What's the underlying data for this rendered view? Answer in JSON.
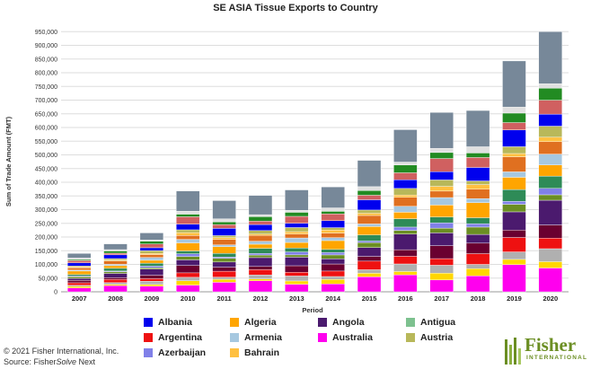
{
  "chart_data": {
    "type": "bar",
    "stacked": true,
    "title": "SE ASIA Tissue Exports to Country",
    "xlabel": "Period",
    "ylabel": "Sum of Trade Amount (FMT)",
    "ylim": [
      0,
      1000000
    ],
    "yticks": [
      0,
      50000,
      100000,
      150000,
      200000,
      250000,
      300000,
      350000,
      400000,
      450000,
      500000,
      550000,
      600000,
      650000,
      700000,
      750000,
      800000,
      850000,
      900000,
      950000
    ],
    "ytick_labels": [
      "0",
      "50,000",
      "100,000",
      "150,000",
      "200,000",
      "250,000",
      "300,000",
      "350,000",
      "400,000",
      "450,000",
      "500,000",
      "550,000",
      "600,000",
      "650,000",
      "700,000",
      "750,000",
      "800,000",
      "850,000",
      "900,000",
      "950,000"
    ],
    "grid": true,
    "legend_position": "bottom",
    "categories": [
      "2007",
      "2008",
      "2009",
      "2010",
      "2011",
      "2012",
      "2013",
      "2014",
      "2015",
      "2016",
      "2017",
      "2018",
      "2019",
      "2020"
    ],
    "totals": [
      140000,
      175000,
      215000,
      368000,
      333000,
      352000,
      372000,
      383000,
      480000,
      592000,
      655000,
      662000,
      843000,
      950000
    ],
    "legend": [
      {
        "name": "Albania",
        "color": "#0000ee"
      },
      {
        "name": "Algeria",
        "color": "#ffa500"
      },
      {
        "name": "Angola",
        "color": "#4b1a6e"
      },
      {
        "name": "Antigua",
        "color": "#7dc18f"
      },
      {
        "name": "Argentina",
        "color": "#ee1111"
      },
      {
        "name": "Armenia",
        "color": "#a6c8e0"
      },
      {
        "name": "Australia",
        "color": "#ff00ee"
      },
      {
        "name": "Austria",
        "color": "#b8b85a"
      },
      {
        "name": "Azerbaijan",
        "color": "#8080e8"
      },
      {
        "name": "Bahrain",
        "color": "#ffc040"
      }
    ],
    "segment_colors": [
      "#ff00ee",
      "#ffd700",
      "#b0b0b0",
      "#ee1111",
      "#6a0030",
      "#4b1a6e",
      "#6b8e23",
      "#8080e8",
      "#2e8b57",
      "#ffa500",
      "#a6c8e0",
      "#e07020",
      "#ffc040",
      "#b8b85a",
      "#0000ee",
      "#d06060",
      "#228b22",
      "#e0e0e0",
      "#778899"
    ]
  },
  "footer": {
    "copyright": "© 2021 Fisher International, Inc.",
    "source_prefix": "Source: Fisher",
    "source_italic": "Solve",
    "source_suffix": " Next"
  },
  "logo": {
    "name": "Fisher",
    "sub": "INTERNATIONAL"
  }
}
